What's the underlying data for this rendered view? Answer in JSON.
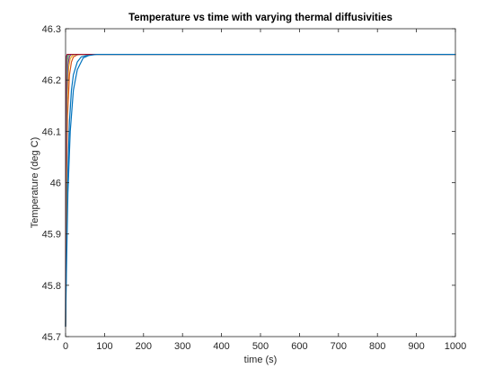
{
  "chart_data": {
    "type": "line",
    "title": "Temperature vs time with varying thermal diffusivities",
    "xlabel": "time (s)",
    "ylabel": "Temperature (deg C)",
    "xlim": [
      0,
      1000
    ],
    "ylim": [
      45.7,
      46.3
    ],
    "xticks": [
      0,
      100,
      200,
      300,
      400,
      500,
      600,
      700,
      800,
      900,
      1000
    ],
    "yticks": [
      45.7,
      45.8,
      45.9,
      46,
      46.1,
      46.2,
      46.3
    ],
    "grid": false,
    "legend": "none",
    "series": [
      {
        "color": "#0072BD",
        "x": [
          0,
          2,
          5,
          10,
          15,
          20,
          30,
          40,
          60,
          80,
          100,
          1000
        ],
        "y": [
          45.72,
          45.86,
          46.0,
          46.12,
          46.18,
          46.21,
          46.235,
          46.245,
          46.249,
          46.25,
          46.25,
          46.25
        ]
      },
      {
        "color": "#D95319",
        "x": [
          0,
          2,
          5,
          10,
          15,
          20,
          30,
          40,
          50,
          1000
        ],
        "y": [
          45.72,
          45.98,
          46.13,
          46.21,
          46.235,
          46.245,
          46.249,
          46.25,
          46.25,
          46.25
        ]
      },
      {
        "color": "#EDB120",
        "x": [
          0,
          2,
          4,
          8,
          12,
          18,
          25,
          35,
          1000
        ],
        "y": [
          45.72,
          46.05,
          46.16,
          46.225,
          46.242,
          46.248,
          46.25,
          46.25,
          46.25
        ]
      },
      {
        "color": "#7E2F8E",
        "x": [
          0,
          1,
          3,
          6,
          10,
          15,
          22,
          1000
        ],
        "y": [
          45.72,
          46.0,
          46.17,
          46.23,
          46.246,
          46.25,
          46.25,
          46.25
        ]
      },
      {
        "color": "#77AC30",
        "x": [
          0,
          1,
          2,
          4,
          7,
          11,
          18,
          1000
        ],
        "y": [
          45.72,
          46.08,
          46.19,
          46.235,
          46.248,
          46.25,
          46.25,
          46.25
        ]
      },
      {
        "color": "#4DBEEE",
        "x": [
          0,
          0.5,
          1.5,
          3,
          5,
          9,
          15,
          1000
        ],
        "y": [
          45.72,
          46.05,
          46.2,
          46.24,
          46.249,
          46.25,
          46.25,
          46.25
        ]
      },
      {
        "color": "#A2142F",
        "x": [
          0,
          0.5,
          1,
          2,
          4,
          7,
          12,
          1000
        ],
        "y": [
          45.72,
          46.12,
          46.22,
          46.245,
          46.25,
          46.25,
          46.25,
          46.25
        ]
      },
      {
        "color": "#0072BD",
        "x": [
          0,
          2,
          6,
          12,
          20,
          30,
          45,
          60,
          80,
          100,
          1000
        ],
        "y": [
          45.72,
          45.82,
          45.98,
          46.1,
          46.18,
          46.22,
          46.243,
          46.248,
          46.25,
          46.25,
          46.25
        ]
      }
    ]
  }
}
